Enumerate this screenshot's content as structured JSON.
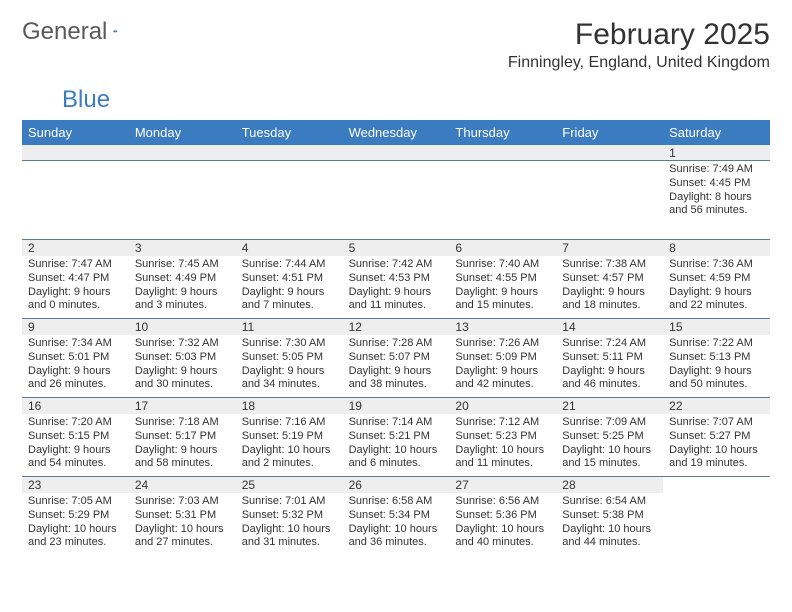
{
  "logo": {
    "word1": "General",
    "word2": "Blue"
  },
  "title": "February 2025",
  "subtitle": "Finningley, England, United Kingdom",
  "colors": {
    "header_bg": "#3b7bbf",
    "header_text": "#ffffff",
    "daynum_bg": "#eeeeee",
    "text": "#333333",
    "rule": "#5a7a9a",
    "logo_gray": "#5a5a5a",
    "logo_blue": "#3b7bbf"
  },
  "day_headers": [
    "Sunday",
    "Monday",
    "Tuesday",
    "Wednesday",
    "Thursday",
    "Friday",
    "Saturday"
  ],
  "weeks": [
    [
      null,
      null,
      null,
      null,
      null,
      null,
      {
        "n": "1",
        "sunrise": "7:49 AM",
        "sunset": "4:45 PM",
        "dh": "8",
        "dm": "56"
      }
    ],
    [
      {
        "n": "2",
        "sunrise": "7:47 AM",
        "sunset": "4:47 PM",
        "dh": "9",
        "dm": "0"
      },
      {
        "n": "3",
        "sunrise": "7:45 AM",
        "sunset": "4:49 PM",
        "dh": "9",
        "dm": "3"
      },
      {
        "n": "4",
        "sunrise": "7:44 AM",
        "sunset": "4:51 PM",
        "dh": "9",
        "dm": "7"
      },
      {
        "n": "5",
        "sunrise": "7:42 AM",
        "sunset": "4:53 PM",
        "dh": "9",
        "dm": "11"
      },
      {
        "n": "6",
        "sunrise": "7:40 AM",
        "sunset": "4:55 PM",
        "dh": "9",
        "dm": "15"
      },
      {
        "n": "7",
        "sunrise": "7:38 AM",
        "sunset": "4:57 PM",
        "dh": "9",
        "dm": "18"
      },
      {
        "n": "8",
        "sunrise": "7:36 AM",
        "sunset": "4:59 PM",
        "dh": "9",
        "dm": "22"
      }
    ],
    [
      {
        "n": "9",
        "sunrise": "7:34 AM",
        "sunset": "5:01 PM",
        "dh": "9",
        "dm": "26"
      },
      {
        "n": "10",
        "sunrise": "7:32 AM",
        "sunset": "5:03 PM",
        "dh": "9",
        "dm": "30"
      },
      {
        "n": "11",
        "sunrise": "7:30 AM",
        "sunset": "5:05 PM",
        "dh": "9",
        "dm": "34"
      },
      {
        "n": "12",
        "sunrise": "7:28 AM",
        "sunset": "5:07 PM",
        "dh": "9",
        "dm": "38"
      },
      {
        "n": "13",
        "sunrise": "7:26 AM",
        "sunset": "5:09 PM",
        "dh": "9",
        "dm": "42"
      },
      {
        "n": "14",
        "sunrise": "7:24 AM",
        "sunset": "5:11 PM",
        "dh": "9",
        "dm": "46"
      },
      {
        "n": "15",
        "sunrise": "7:22 AM",
        "sunset": "5:13 PM",
        "dh": "9",
        "dm": "50"
      }
    ],
    [
      {
        "n": "16",
        "sunrise": "7:20 AM",
        "sunset": "5:15 PM",
        "dh": "9",
        "dm": "54"
      },
      {
        "n": "17",
        "sunrise": "7:18 AM",
        "sunset": "5:17 PM",
        "dh": "9",
        "dm": "58"
      },
      {
        "n": "18",
        "sunrise": "7:16 AM",
        "sunset": "5:19 PM",
        "dh": "10",
        "dm": "2"
      },
      {
        "n": "19",
        "sunrise": "7:14 AM",
        "sunset": "5:21 PM",
        "dh": "10",
        "dm": "6"
      },
      {
        "n": "20",
        "sunrise": "7:12 AM",
        "sunset": "5:23 PM",
        "dh": "10",
        "dm": "11"
      },
      {
        "n": "21",
        "sunrise": "7:09 AM",
        "sunset": "5:25 PM",
        "dh": "10",
        "dm": "15"
      },
      {
        "n": "22",
        "sunrise": "7:07 AM",
        "sunset": "5:27 PM",
        "dh": "10",
        "dm": "19"
      }
    ],
    [
      {
        "n": "23",
        "sunrise": "7:05 AM",
        "sunset": "5:29 PM",
        "dh": "10",
        "dm": "23"
      },
      {
        "n": "24",
        "sunrise": "7:03 AM",
        "sunset": "5:31 PM",
        "dh": "10",
        "dm": "27"
      },
      {
        "n": "25",
        "sunrise": "7:01 AM",
        "sunset": "5:32 PM",
        "dh": "10",
        "dm": "31"
      },
      {
        "n": "26",
        "sunrise": "6:58 AM",
        "sunset": "5:34 PM",
        "dh": "10",
        "dm": "36"
      },
      {
        "n": "27",
        "sunrise": "6:56 AM",
        "sunset": "5:36 PM",
        "dh": "10",
        "dm": "40"
      },
      {
        "n": "28",
        "sunrise": "6:54 AM",
        "sunset": "5:38 PM",
        "dh": "10",
        "dm": "44"
      },
      null
    ]
  ]
}
